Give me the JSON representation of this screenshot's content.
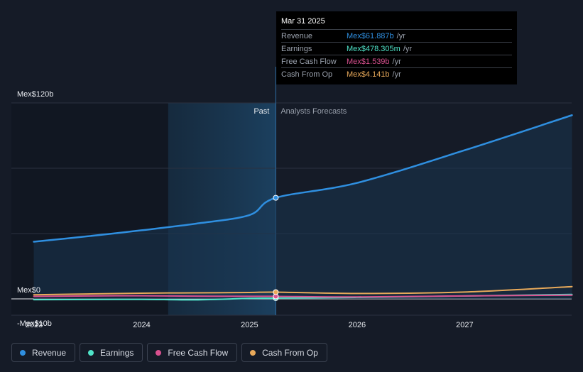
{
  "chart_data": {
    "type": "area",
    "x_ticks": [
      "2023",
      "2024",
      "2025",
      "2026",
      "2027"
    ],
    "y_ticks": [
      {
        "value": 120,
        "label": "Mex$120b"
      },
      {
        "value": 0,
        "label": "Mex$0"
      },
      {
        "value": -10,
        "label": "-Mex$10b"
      }
    ],
    "ylim": [
      -10,
      120
    ],
    "past_label": "Past",
    "forecast_label": "Analysts Forecasts",
    "divider_date": "2025-03-31",
    "highlight_start": "2024-03-31",
    "series": [
      {
        "name": "Revenue",
        "color": "#2f8fe0",
        "points": [
          [
            "2022-12-31",
            35.0
          ],
          [
            "2023-06-30",
            38.3
          ],
          [
            "2023-12-31",
            42.0
          ],
          [
            "2024-06-30",
            46.0
          ],
          [
            "2024-12-31",
            51.3
          ],
          [
            "2025-03-31",
            61.9
          ],
          [
            "2025-12-31",
            71.0
          ],
          [
            "2026-12-31",
            91.0
          ],
          [
            "2027-12-31",
            112.5
          ]
        ]
      },
      {
        "name": "Earnings",
        "color": "#4fe3c8",
        "points": [
          [
            "2022-12-31",
            -0.5
          ],
          [
            "2023-06-30",
            -0.4
          ],
          [
            "2023-12-31",
            -0.3
          ],
          [
            "2024-06-30",
            -0.6
          ],
          [
            "2024-12-31",
            0.3
          ],
          [
            "2025-03-31",
            0.478
          ],
          [
            "2025-12-31",
            0.9
          ],
          [
            "2026-12-31",
            1.8
          ],
          [
            "2027-12-31",
            2.7
          ]
        ]
      },
      {
        "name": "Free Cash Flow",
        "color": "#d9508f",
        "points": [
          [
            "2022-12-31",
            1.5
          ],
          [
            "2023-06-30",
            1.8
          ],
          [
            "2023-12-31",
            1.9
          ],
          [
            "2024-06-30",
            1.7
          ],
          [
            "2024-12-31",
            1.6
          ],
          [
            "2025-03-31",
            1.539
          ],
          [
            "2025-12-31",
            1.2
          ],
          [
            "2026-12-31",
            1.8
          ],
          [
            "2027-12-31",
            2.3
          ]
        ]
      },
      {
        "name": "Cash From Op",
        "color": "#e8a95a",
        "points": [
          [
            "2022-12-31",
            2.5
          ],
          [
            "2023-06-30",
            3.0
          ],
          [
            "2023-12-31",
            3.5
          ],
          [
            "2024-06-30",
            3.7
          ],
          [
            "2024-12-31",
            3.9
          ],
          [
            "2025-03-31",
            4.141
          ],
          [
            "2025-12-31",
            3.3
          ],
          [
            "2026-12-31",
            4.2
          ],
          [
            "2027-12-31",
            7.5
          ]
        ]
      }
    ],
    "grid": true,
    "legend_position": "bottom"
  },
  "tooltip": {
    "date": "Mar 31 2025",
    "unit": "/yr",
    "rows": [
      {
        "label": "Revenue",
        "value": "Mex$61.887b",
        "color": "#2f8fe0"
      },
      {
        "label": "Earnings",
        "value": "Mex$478.305m",
        "color": "#4fe3c8"
      },
      {
        "label": "Free Cash Flow",
        "value": "Mex$1.539b",
        "color": "#d9508f"
      },
      {
        "label": "Cash From Op",
        "value": "Mex$4.141b",
        "color": "#e8a95a"
      }
    ]
  },
  "legend": [
    {
      "label": "Revenue",
      "color": "#2f8fe0"
    },
    {
      "label": "Earnings",
      "color": "#4fe3c8"
    },
    {
      "label": "Free Cash Flow",
      "color": "#d9508f"
    },
    {
      "label": "Cash From Op",
      "color": "#e8a95a"
    }
  ]
}
